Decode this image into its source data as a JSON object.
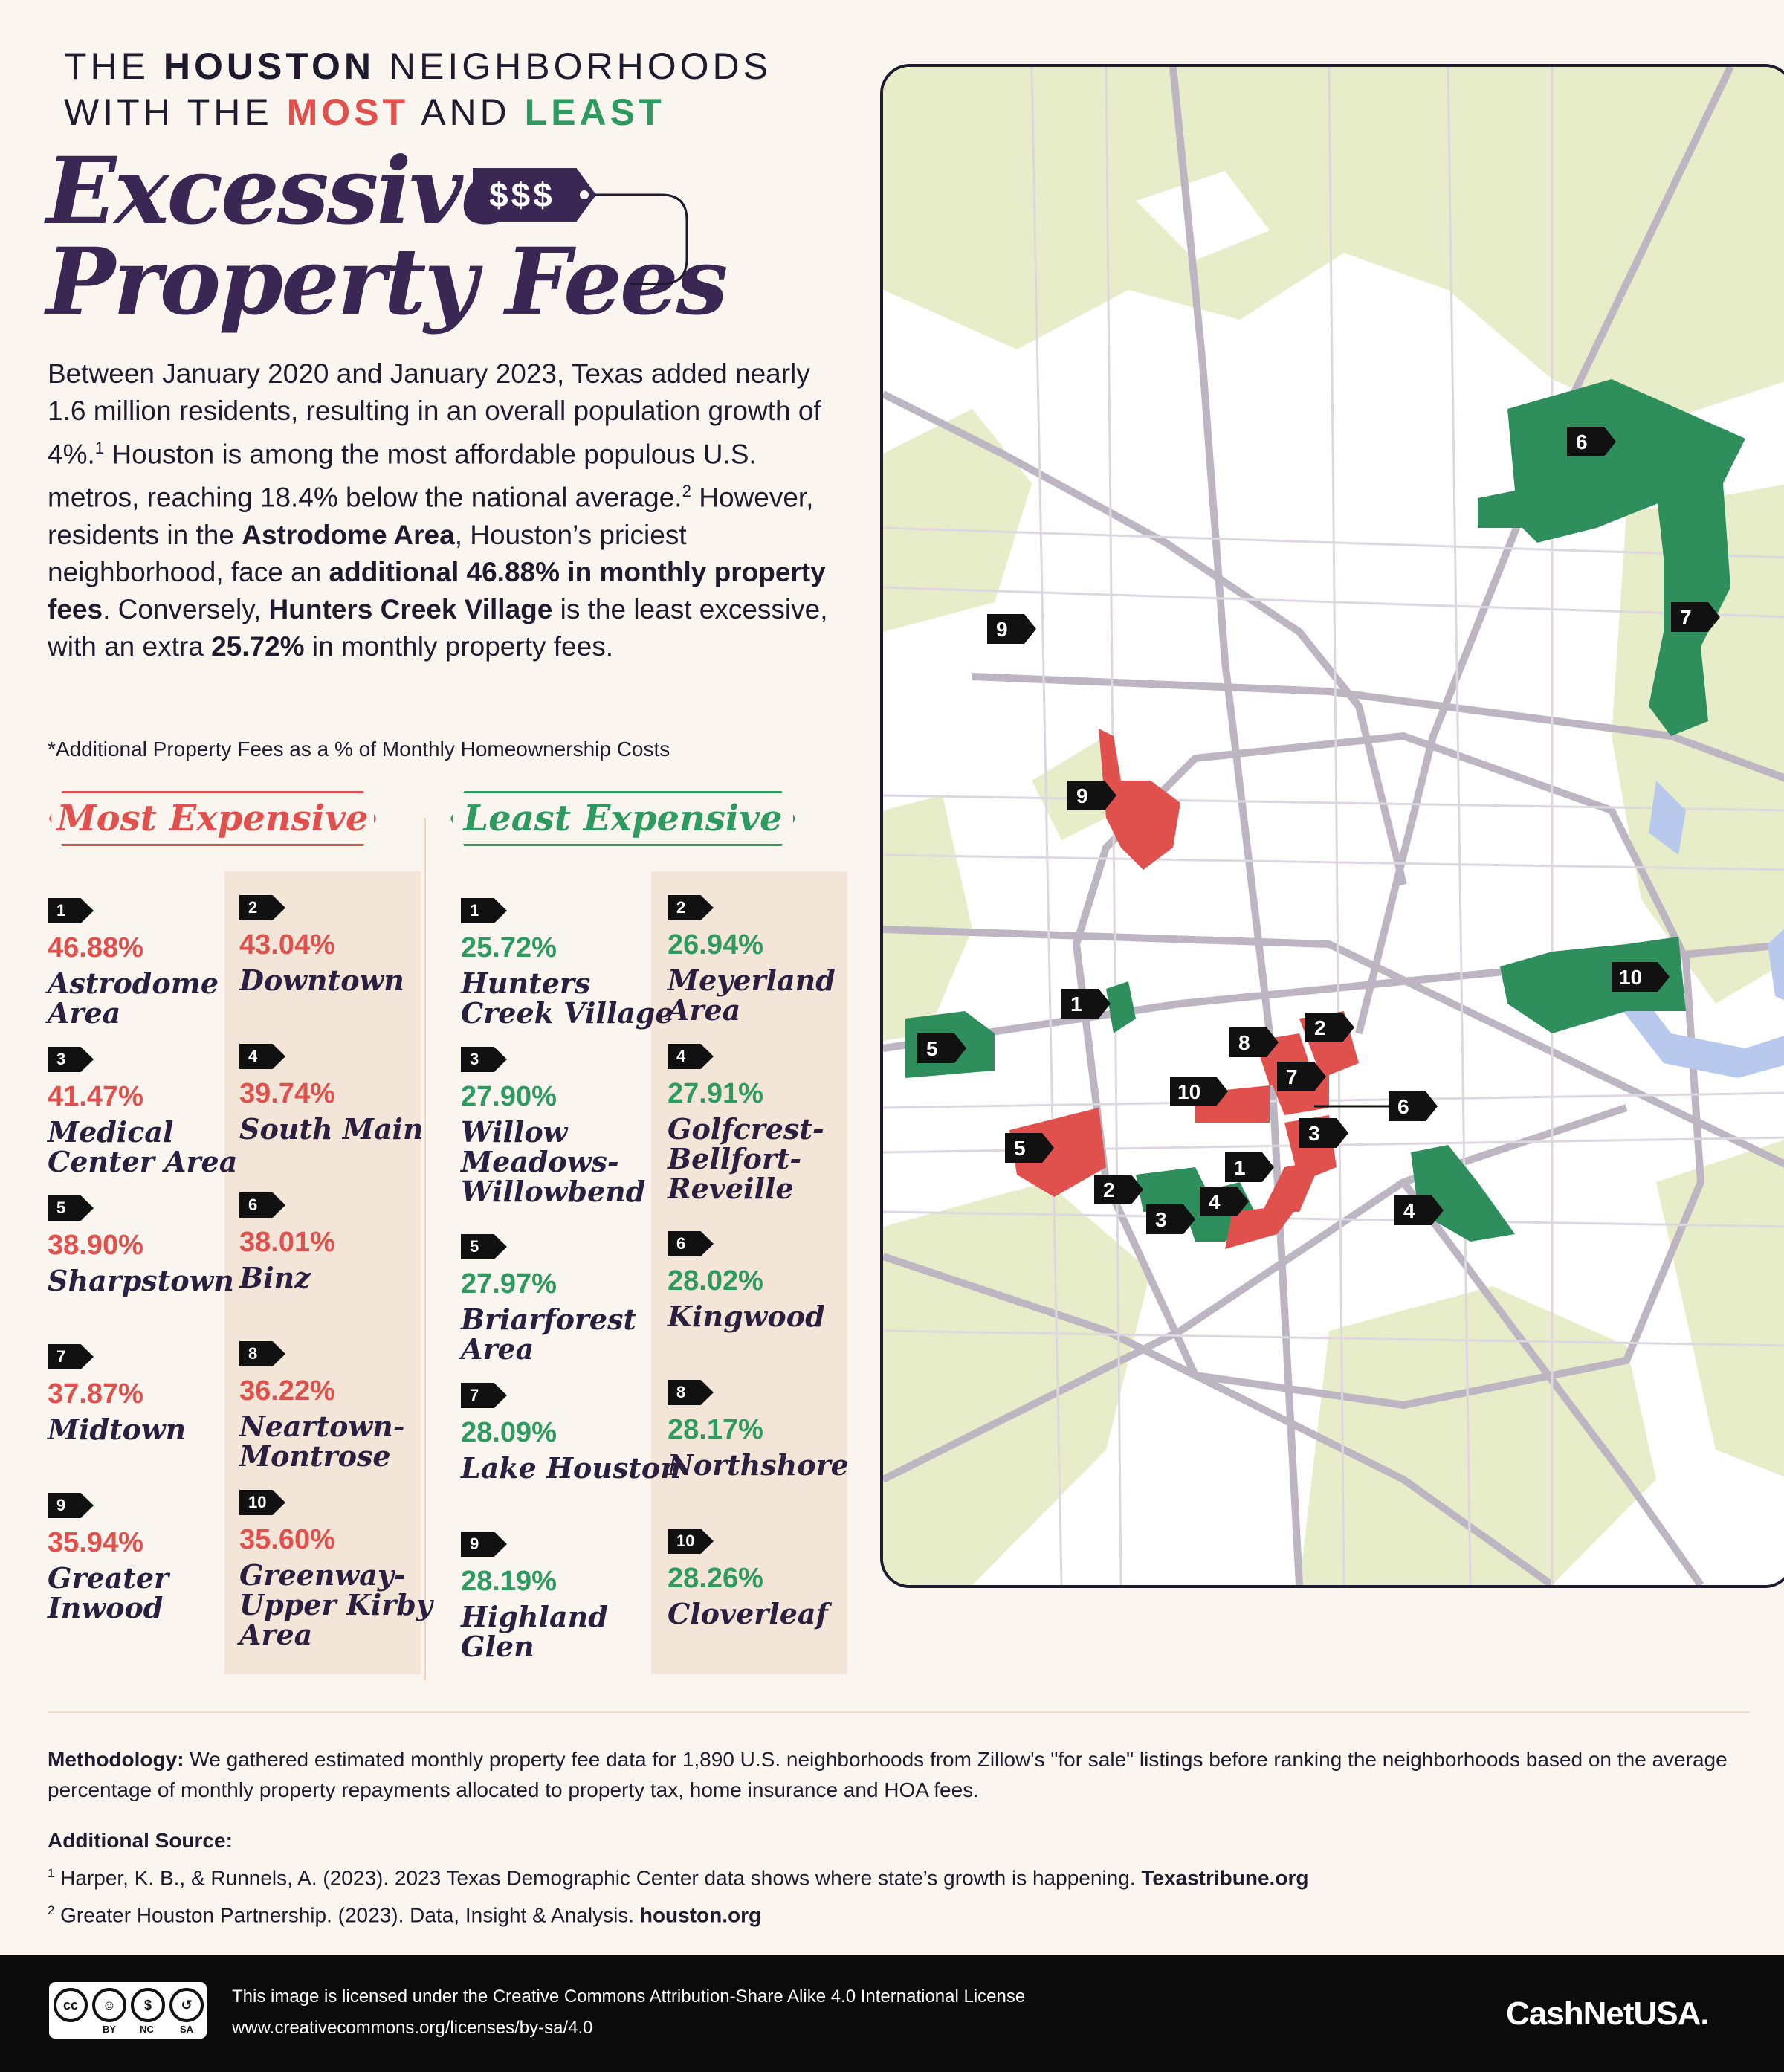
{
  "header": {
    "line1_a": "THE ",
    "line1_b": "HOUSTON",
    "line1_c": " NEIGHBORHOODS",
    "line2_a": "WITH THE ",
    "line2_b": "MOST",
    "line2_c": " AND ",
    "line2_d": "LEAST",
    "title_1": "Excessive",
    "title_2": "Property Fees",
    "tag": "$$$"
  },
  "intro": {
    "p1": "Between January 2020 and January 2023, Texas added nearly 1.6 million residents, resulting in an overall population growth of 4%.",
    "sup1": "1",
    "p2": " Houston is among the most affordable populous U.S. metros, reaching 18.4% below the national average.",
    "sup2": "2",
    "p3": " However, residents in the ",
    "b1": "Astrodome Area",
    "p4": ", Houston’s priciest neighborhood, face an ",
    "b2": "additional 46.88% in monthly property fees",
    "p5": ". Conversely, ",
    "b3": "Hunters Creek Village",
    "p6": " is the least excessive, with an extra ",
    "b4": "25.72%",
    "p7": " in monthly property fees."
  },
  "note": "*Additional Property Fees as a % of Monthly Homeownership Costs",
  "most": {
    "heading": "Most Expensive",
    "items": [
      {
        "rank": "1",
        "pct": "46.88%",
        "name": "Astrodome Area"
      },
      {
        "rank": "2",
        "pct": "43.04%",
        "name": "Downtown"
      },
      {
        "rank": "3",
        "pct": "41.47%",
        "name": "Medical Center Area"
      },
      {
        "rank": "4",
        "pct": "39.74%",
        "name": "South Main"
      },
      {
        "rank": "5",
        "pct": "38.90%",
        "name": "Sharpstown"
      },
      {
        "rank": "6",
        "pct": "38.01%",
        "name": "Binz"
      },
      {
        "rank": "7",
        "pct": "37.87%",
        "name": "Midtown"
      },
      {
        "rank": "8",
        "pct": "36.22%",
        "name": "Neartown-Montrose"
      },
      {
        "rank": "9",
        "pct": "35.94%",
        "name": "Greater Inwood"
      },
      {
        "rank": "10",
        "pct": "35.60%",
        "name": "Greenway-Upper Kirby Area"
      }
    ]
  },
  "least": {
    "heading": "Least Expensive",
    "items": [
      {
        "rank": "1",
        "pct": "25.72%",
        "name": "Hunters Creek Village"
      },
      {
        "rank": "2",
        "pct": "26.94%",
        "name": "Meyerland Area"
      },
      {
        "rank": "3",
        "pct": "27.90%",
        "name": "Willow Meadows-Willowbend"
      },
      {
        "rank": "4",
        "pct": "27.91%",
        "name": "Golfcrest-Bellfort-Reveille"
      },
      {
        "rank": "5",
        "pct": "27.97%",
        "name": "Briarforest Area"
      },
      {
        "rank": "6",
        "pct": "28.02%",
        "name": "Kingwood"
      },
      {
        "rank": "7",
        "pct": "28.09%",
        "name": "Lake Houston"
      },
      {
        "rank": "8",
        "pct": "28.17%",
        "name": "Northshore"
      },
      {
        "rank": "9",
        "pct": "28.19%",
        "name": "Highland Glen"
      },
      {
        "rank": "10",
        "pct": "28.26%",
        "name": "Cloverleaf"
      }
    ]
  },
  "map": {
    "colors": {
      "most": "#e0514d",
      "least": "#2e8f5c",
      "green_space": "#e8edc9",
      "road": "#b9b2bd",
      "water": "#b9c9ee"
    },
    "labels_most": [
      "1",
      "2",
      "3",
      "4",
      "5",
      "7",
      "8",
      "9",
      "10"
    ],
    "labels_least": [
      "1",
      "2",
      "3",
      "4",
      "5",
      "6",
      "7",
      "9",
      "10"
    ],
    "label_6_red": "6"
  },
  "methodology": {
    "label": "Methodology:",
    "text": " We gathered estimated monthly property fee data for 1,890 U.S. neighborhoods from Zillow's \"for sale\" listings before ranking the neighborhoods based on the average percentage of monthly property repayments allocated to property tax, home insurance and HOA fees."
  },
  "sources": {
    "title": "Additional Source:",
    "s1_num": "1",
    "s1_text": " Harper, K. B., & Runnels, A. (2023). 2023 Texas Demographic Center data shows where state’s growth is happening. ",
    "s1_bold": "Texastribune.org",
    "s2_num": "2",
    "s2_text": " Greater Houston Partnership. (2023). Data, Insight & Analysis. ",
    "s2_bold": "houston.org"
  },
  "footer": {
    "cc_icons": [
      "cc",
      "by",
      "nc",
      "sa"
    ],
    "cc_labels": [
      "BY",
      "NC",
      "SA"
    ],
    "license_line1": "This image is licensed under the Creative Commons Attribution-Share Alike 4.0 International License",
    "license_line2": "www.creativecommons.org/licenses/by-sa/4.0",
    "brand": "CashNetUSA."
  }
}
